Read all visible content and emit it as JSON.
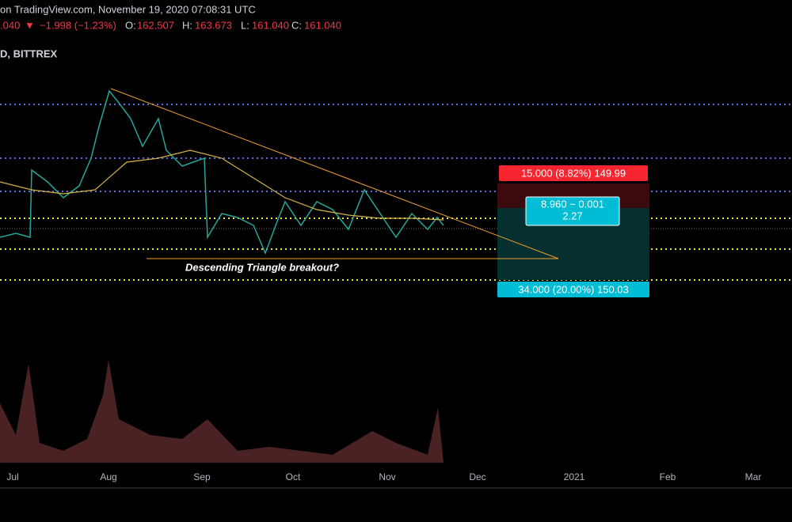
{
  "header": {
    "source": "on TradingView.com, November 19, 2020 07:08:31 UTC",
    "last": ".040",
    "arrow": "▼",
    "change": "−1.998 (−1.23%)",
    "o_label": "O:",
    "o": "162.507",
    "h_label": "H:",
    "h": "163.673",
    "l_label": "L:",
    "l": "161.040",
    "c_label": "C:",
    "c": "161.040"
  },
  "symbol": "D, BITTREX",
  "annotation": "Descending Triangle breakout?",
  "position": {
    "stop": "15.000 (8.82%) 149.99",
    "stats_1": "8.960 ~ 0.001",
    "stats_2": "2.27",
    "target": "34.000 (20.00%) 150.03"
  },
  "time_axis": [
    "Jul",
    "Aug",
    "Sep",
    "Oct",
    "Nov",
    "Dec",
    "2021",
    "Feb",
    "Mar"
  ]
}
